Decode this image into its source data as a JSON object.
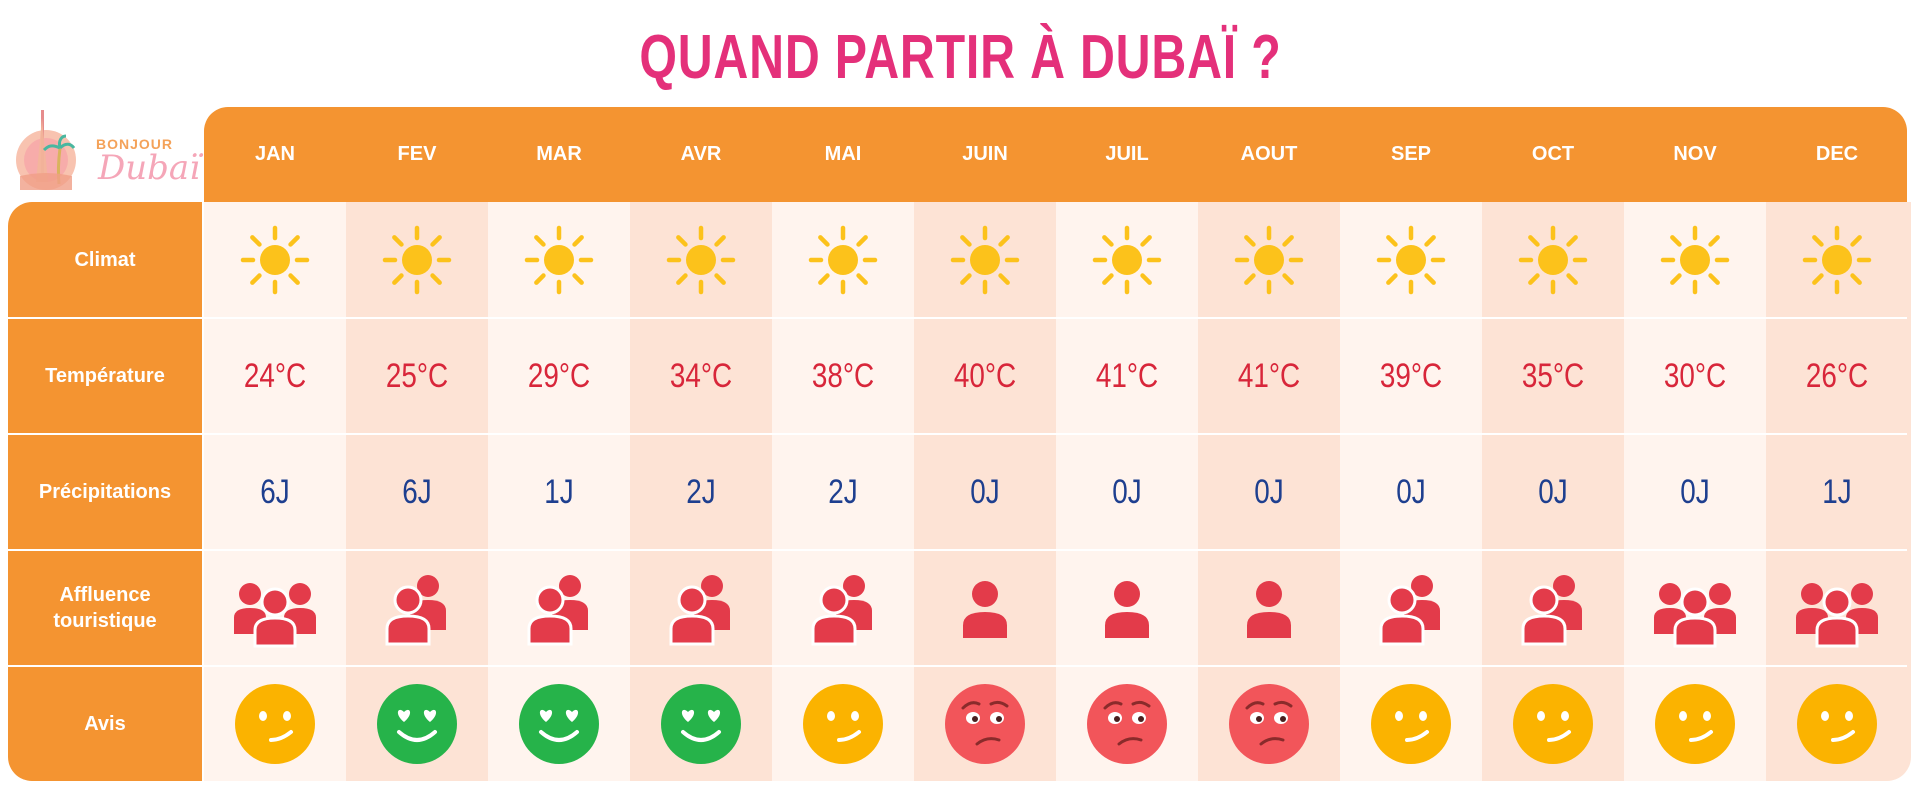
{
  "title": "QUAND PARTIR À DUBAÏ ?",
  "logo": {
    "line1": "BONJOUR",
    "line2": "Dubaï"
  },
  "row_labels": {
    "climat": "Climat",
    "temperature": "Température",
    "precipitations": "Précipitations",
    "affluence": [
      "Affluence",
      "touristique"
    ],
    "avis": "Avis"
  },
  "months": [
    {
      "name": "JAN",
      "climate": "sun-icon",
      "temperature": "24°C",
      "precipitation": "6J",
      "crowd": "three-people",
      "mood": "neutral"
    },
    {
      "name": "FEV",
      "climate": "sun-icon",
      "temperature": "25°C",
      "precipitation": "6J",
      "crowd": "two-people",
      "mood": "love"
    },
    {
      "name": "MAR",
      "climate": "sun-icon",
      "temperature": "29°C",
      "precipitation": "1J",
      "crowd": "two-people",
      "mood": "love"
    },
    {
      "name": "AVR",
      "climate": "sun-icon",
      "temperature": "34°C",
      "precipitation": "2J",
      "crowd": "two-people",
      "mood": "love"
    },
    {
      "name": "MAI",
      "climate": "sun-icon",
      "temperature": "38°C",
      "precipitation": "2J",
      "crowd": "two-people",
      "mood": "neutral"
    },
    {
      "name": "JUIN",
      "climate": "sun-icon",
      "temperature": "40°C",
      "precipitation": "0J",
      "crowd": "one-person",
      "mood": "worried"
    },
    {
      "name": "JUIL",
      "climate": "sun-icon",
      "temperature": "41°C",
      "precipitation": "0J",
      "crowd": "one-person",
      "mood": "worried"
    },
    {
      "name": "AOUT",
      "climate": "sun-icon",
      "temperature": "41°C",
      "precipitation": "0J",
      "crowd": "one-person",
      "mood": "worried"
    },
    {
      "name": "SEP",
      "climate": "sun-icon",
      "temperature": "39°C",
      "precipitation": "0J",
      "crowd": "two-people",
      "mood": "neutral"
    },
    {
      "name": "OCT",
      "climate": "sun-icon",
      "temperature": "35°C",
      "precipitation": "0J",
      "crowd": "two-people",
      "mood": "neutral"
    },
    {
      "name": "NOV",
      "climate": "sun-icon",
      "temperature": "30°C",
      "precipitation": "0J",
      "crowd": "three-people",
      "mood": "neutral"
    },
    {
      "name": "DEC",
      "climate": "sun-icon",
      "temperature": "26°C",
      "precipitation": "1J",
      "crowd": "three-people",
      "mood": "neutral"
    }
  ],
  "colors": {
    "title": "#e4307a",
    "header": "#f49431",
    "temperature": "#d8263a",
    "precipitation": "#1e3f8f",
    "sun": "#fcc21b",
    "crowd": "#e33b4a",
    "mood_neutral": "#fbb300",
    "mood_love": "#26b34a",
    "mood_worried": "#f2555a"
  }
}
